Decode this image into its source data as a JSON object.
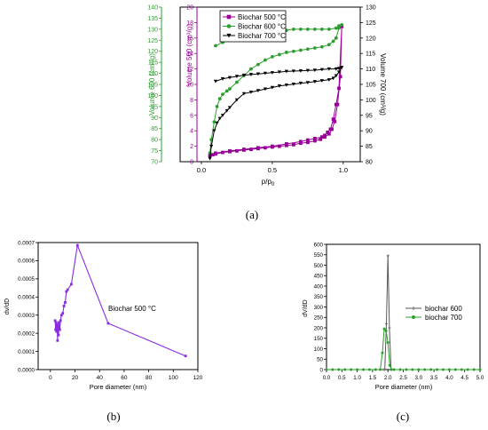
{
  "chart_data": [
    {
      "id": "a",
      "type": "line",
      "caption": "(a)",
      "xlabel": "p/p",
      "xlabel_sub": "0",
      "xticks": [
        "0.0",
        "0.5",
        "1.0"
      ],
      "xlim": [
        -0.15,
        1.12
      ],
      "axes": {
        "v600": {
          "label": "Volume 600 (cm³/g)",
          "color": "#2ca02c",
          "ylim": [
            70,
            140
          ],
          "ticks": [
            70,
            75,
            80,
            85,
            90,
            95,
            100,
            105,
            110,
            115,
            120,
            125,
            130,
            135,
            140
          ]
        },
        "v500": {
          "label": "Volume 500 (cm³/g)",
          "color": "#990099",
          "ylim": [
            0,
            20
          ],
          "ticks": [
            0,
            2,
            4,
            6,
            8,
            10,
            12,
            14,
            16,
            18,
            20
          ]
        },
        "v700": {
          "label": "Volume 700 (cm³/g)",
          "color": "#000000",
          "ylim": [
            80,
            130
          ],
          "ticks": [
            80,
            85,
            90,
            95,
            100,
            105,
            110,
            115,
            120,
            125,
            130
          ]
        }
      },
      "legend": [
        "Biochar 500 °C",
        "Biochar 600 °C",
        "Biochar 700 °C"
      ],
      "series": [
        {
          "name": "Biochar 500 °C",
          "axis": "v500",
          "color": "#990099",
          "marker": "square",
          "x": [
            0.06,
            0.08,
            0.1,
            0.15,
            0.2,
            0.25,
            0.3,
            0.35,
            0.4,
            0.45,
            0.5,
            0.55,
            0.6,
            0.65,
            0.7,
            0.75,
            0.8,
            0.84,
            0.87,
            0.9,
            0.92,
            0.94,
            0.96,
            0.98,
            0.99,
            0.97,
            0.95,
            0.93,
            0.91,
            0.89,
            0.87,
            0.85,
            0.8,
            0.75,
            0.7,
            0.6,
            0.5,
            0.4,
            0.3,
            0.2,
            0.1
          ],
          "y": [
            0.8,
            0.9,
            1.0,
            1.2,
            1.3,
            1.4,
            1.5,
            1.6,
            1.7,
            1.8,
            1.9,
            2.0,
            2.1,
            2.2,
            2.4,
            2.5,
            2.7,
            2.9,
            3.2,
            3.6,
            4.2,
            5.2,
            7.4,
            11,
            17.5,
            9.5,
            7.4,
            5.5,
            4.2,
            3.8,
            3.4,
            3.2,
            3.0,
            2.8,
            2.6,
            2.3,
            2.0,
            1.8,
            1.6,
            1.4,
            1.1
          ]
        },
        {
          "name": "Biochar 600 °C",
          "axis": "v600",
          "color": "#2ca02c",
          "marker": "circle",
          "x": [
            0.06,
            0.07,
            0.09,
            0.11,
            0.13,
            0.15,
            0.18,
            0.2,
            0.25,
            0.3,
            0.35,
            0.4,
            0.45,
            0.5,
            0.55,
            0.6,
            0.65,
            0.7,
            0.75,
            0.8,
            0.85,
            0.9,
            0.93,
            0.95,
            0.97,
            0.99,
            0.97,
            0.95,
            0.9,
            0.85,
            0.8,
            0.75,
            0.7,
            0.65,
            0.6,
            0.55,
            0.5,
            0.45,
            0.4,
            0.35,
            0.3,
            0.25,
            0.2,
            0.15,
            0.1
          ],
          "y": [
            74,
            80,
            88,
            95,
            98.5,
            100.5,
            102,
            103,
            106,
            109,
            112,
            114,
            116,
            117.5,
            118.5,
            119.5,
            120,
            120.5,
            121,
            121.5,
            122,
            123,
            124.5,
            126,
            130.5,
            132,
            131.5,
            130.5,
            130,
            130,
            130,
            130,
            130,
            130,
            129.5,
            129.5,
            129,
            128.5,
            128,
            127.5,
            127,
            126,
            125,
            124,
            122.5
          ]
        },
        {
          "name": "Biochar 700 °C",
          "axis": "v700",
          "color": "#000000",
          "marker": "triangle",
          "x": [
            0.06,
            0.07,
            0.09,
            0.11,
            0.13,
            0.15,
            0.18,
            0.2,
            0.25,
            0.3,
            0.35,
            0.4,
            0.45,
            0.5,
            0.55,
            0.6,
            0.65,
            0.7,
            0.75,
            0.8,
            0.85,
            0.9,
            0.93,
            0.95,
            0.97,
            0.99,
            0.97,
            0.95,
            0.9,
            0.85,
            0.8,
            0.75,
            0.7,
            0.65,
            0.6,
            0.55,
            0.5,
            0.45,
            0.4,
            0.35,
            0.3,
            0.25,
            0.2,
            0.15,
            0.1
          ],
          "y": [
            81,
            85,
            90,
            92.5,
            94,
            95,
            96.5,
            97.5,
            100,
            102,
            102.5,
            103,
            103.5,
            104,
            104.5,
            104.8,
            105.1,
            105.4,
            105.6,
            105.9,
            106.2,
            106.5,
            107,
            107.8,
            109,
            110.5,
            110.2,
            110,
            110,
            109.8,
            109.6,
            109.5,
            109.4,
            109.3,
            109.2,
            109,
            108.8,
            108.6,
            108.4,
            108.2,
            108,
            107.6,
            107.2,
            106.8,
            106
          ]
        }
      ]
    },
    {
      "id": "b",
      "type": "line",
      "caption": "(b)",
      "xlabel": "Pore diameter (nm)",
      "ylabel": "dv/dD",
      "xlim": [
        -10,
        120
      ],
      "ylim": [
        0,
        0.0007
      ],
      "xticks": [
        "0",
        "20",
        "40",
        "60",
        "80",
        "100",
        "120"
      ],
      "yticks": [
        "0.0000",
        "0.0001",
        "0.0002",
        "0.0003",
        "0.0004",
        "0.0005",
        "0.0006",
        "0.0007"
      ],
      "annotation": "Biochar 500 °C",
      "series": [
        {
          "color": "#8a2be2",
          "marker": "square",
          "x": [
            3.8,
            4.2,
            4.6,
            5.0,
            5.4,
            5.8,
            6.2,
            6.6,
            7.0,
            7.6,
            8.2,
            9.0,
            10,
            11,
            12,
            13,
            14,
            17,
            22,
            47,
            110
          ],
          "y": [
            0.00027,
            0.00022,
            0.00026,
            0.00021,
            0.00025,
            0.00016,
            0.00024,
            0.00019,
            0.00026,
            0.00022,
            0.00027,
            0.0003,
            0.00031,
            0.00035,
            0.00037,
            0.00043,
            0.00044,
            0.00047,
            0.000685,
            0.000255,
            7.5e-05
          ]
        }
      ]
    },
    {
      "id": "c",
      "type": "line",
      "caption": "(c)",
      "xlabel": "Pore diameter (nm)",
      "ylabel": "dV/dD",
      "xlim": [
        0,
        5
      ],
      "ylim": [
        0,
        600
      ],
      "xticks": [
        "0.0",
        "0.5",
        "1.0",
        "1.5",
        "2.0",
        "2.5",
        "3.0",
        "3.5",
        "4.0",
        "4.5",
        "5.0"
      ],
      "yticks": [
        "0",
        "50",
        "100",
        "150",
        "200",
        "250",
        "300",
        "350",
        "400",
        "450",
        "500",
        "550",
        "600"
      ],
      "legend": [
        "biochar 600",
        "biochar 700"
      ],
      "series": [
        {
          "name": "biochar 600",
          "color": "#555555",
          "marker": "cross",
          "x": [
            0,
            0.2,
            0.4,
            0.6,
            0.8,
            1.0,
            1.2,
            1.4,
            1.6,
            1.75,
            1.85,
            1.9,
            1.95,
            2.0,
            2.05,
            2.1,
            2.2,
            2.4,
            2.6,
            2.8,
            3.0,
            3.2,
            3.4,
            3.6,
            3.8,
            4.0,
            4.2,
            4.4,
            4.6,
            4.8,
            5.0
          ],
          "y": [
            0,
            0,
            0,
            0,
            0,
            0,
            0,
            0,
            0,
            0,
            0,
            0,
            220,
            545,
            200,
            0,
            0,
            0,
            0,
            0,
            0,
            0,
            0,
            0,
            0,
            0,
            0,
            0,
            0,
            0,
            0
          ]
        },
        {
          "name": "biochar 700",
          "color": "#2ca02c",
          "marker": "circle",
          "x": [
            0,
            0.2,
            0.4,
            0.6,
            0.8,
            1.0,
            1.2,
            1.4,
            1.6,
            1.75,
            1.82,
            1.88,
            1.94,
            2.0,
            2.06,
            2.12,
            2.2,
            2.4,
            2.6,
            2.8,
            3.0,
            3.2,
            3.4,
            3.6,
            3.8,
            4.0,
            4.2,
            4.4,
            4.6,
            4.8,
            5.0
          ],
          "y": [
            0,
            0,
            0,
            0,
            0,
            0,
            0,
            0,
            0,
            0,
            80,
            195,
            185,
            130,
            20,
            0,
            0,
            0,
            0,
            0,
            0,
            0,
            0,
            0,
            0,
            0,
            0,
            0,
            0,
            0,
            0
          ]
        }
      ]
    }
  ]
}
